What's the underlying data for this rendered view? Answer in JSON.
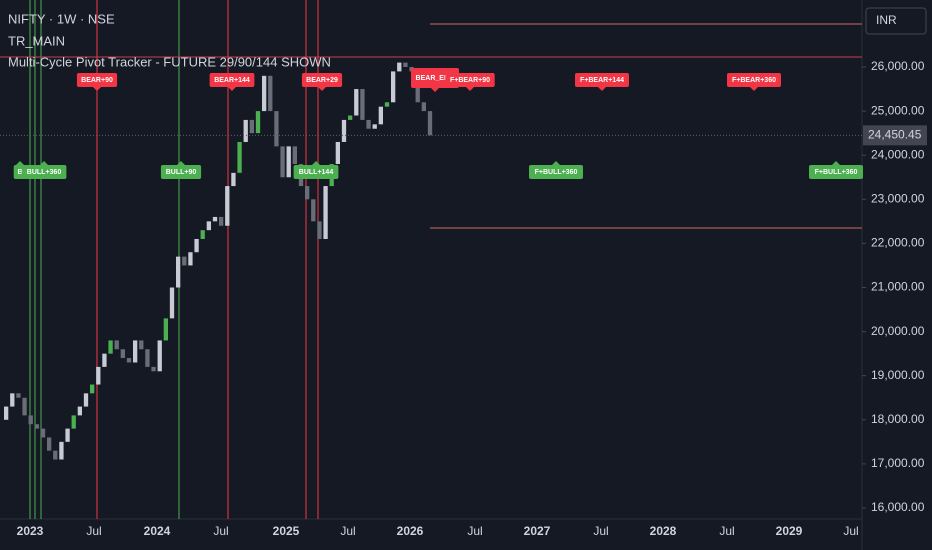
{
  "header": {
    "symbol": "NIFTY · 1W · NSE",
    "indicator": "TR_MAIN",
    "study": "Multi-Cycle Pivot Tracker - FUTURE 29/90/144 SHOWN"
  },
  "price_axis": {
    "currency": "INR",
    "ticks": [
      {
        "value": 26000,
        "label": "26,000.00"
      },
      {
        "value": 25000,
        "label": "25,000.00"
      },
      {
        "value": 24000,
        "label": "24,000.00"
      },
      {
        "value": 23000,
        "label": "23,000.00"
      },
      {
        "value": 22000,
        "label": "22,000.00"
      },
      {
        "value": 21000,
        "label": "21,000.00"
      },
      {
        "value": 20000,
        "label": "20,000.00"
      },
      {
        "value": 19000,
        "label": "19,000.00"
      },
      {
        "value": 18000,
        "label": "18,000.00"
      },
      {
        "value": 17000,
        "label": "17,000.00"
      },
      {
        "value": 16000,
        "label": "16,000.00"
      }
    ],
    "last_price": {
      "value": 24450.45,
      "label": "24,450.45"
    }
  },
  "time_axis": {
    "labels": [
      "2023",
      "Jul",
      "2024",
      "Jul",
      "2025",
      "Jul",
      "2026",
      "Jul",
      "2027",
      "Jul",
      "2028",
      "Jul",
      "2029",
      "Jul"
    ]
  },
  "signals": [
    {
      "label": "B"
    },
    {
      "label": "BULL+360"
    },
    {
      "label": "BEAR+90"
    },
    {
      "label": "BULL+90"
    },
    {
      "label": "BEAR+144"
    },
    {
      "label": "BEAR+29"
    },
    {
      "label": "BULL+144"
    },
    {
      "label": "BEAR_ENG"
    },
    {
      "label": "F+BEAR+90"
    },
    {
      "label": "F+BEAR+144"
    },
    {
      "label": "F+BEAR+360"
    },
    {
      "label": "F+BULL+360"
    },
    {
      "label": "F+BULL+360"
    }
  ],
  "price_closes": [
    18000,
    18300,
    18600,
    18500,
    18100,
    17900,
    17800,
    17600,
    17300,
    17100,
    17500,
    17800,
    18100,
    18300,
    18600,
    18800,
    19200,
    19500,
    19800,
    19600,
    19400,
    19300,
    19800,
    19600,
    19200,
    19100,
    19800,
    20300,
    21000,
    21700,
    21500,
    21800,
    22100,
    22300,
    22500,
    22600,
    22400,
    23300,
    23600,
    24300,
    24800,
    24500,
    25000,
    25800,
    25000,
    24200,
    23500,
    24200,
    23800,
    23300,
    23000,
    22500,
    22100,
    23300,
    23800,
    24300,
    24800,
    24900,
    25500,
    24800,
    24600,
    24700,
    25100,
    25200,
    25900,
    26100,
    26000,
    25900,
    25200,
    25000,
    24450
  ]
}
